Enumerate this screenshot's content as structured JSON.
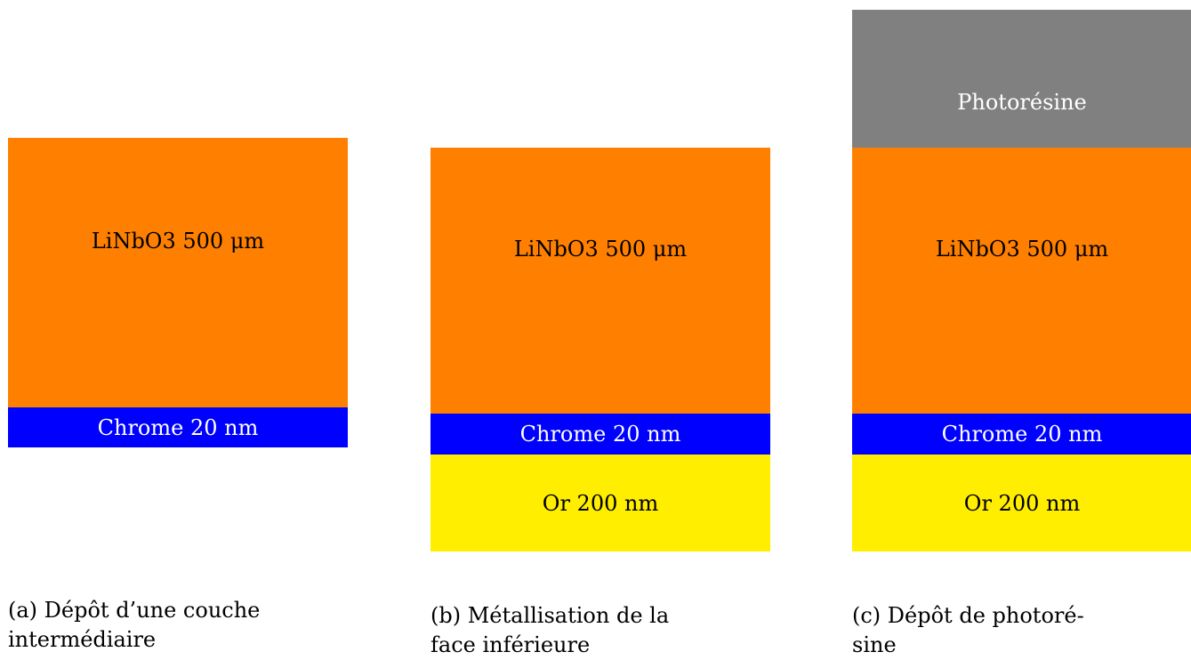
{
  "colors": {
    "lithium_niobate": "#FF8000",
    "chrome": "#0000FF",
    "gold": "#FFEE00",
    "photoresist": "#808080"
  },
  "panels": [
    {
      "layers": {
        "substrate": "LiNbO3 500 μm",
        "chrome": "Chrome 20 nm"
      },
      "caption": {
        "line1": "(a) Dépôt d’une couche",
        "line2": "intermédiaire"
      }
    },
    {
      "layers": {
        "substrate": "LiNbO3 500 μm",
        "chrome": "Chrome 20 nm",
        "gold": "Or 200 nm"
      },
      "caption": {
        "line1": "(b) Métallisation de la",
        "line2": "face inférieure"
      }
    },
    {
      "layers": {
        "photoresist": "Photorésine",
        "substrate": "LiNbO3 500 μm",
        "chrome": "Chrome 20 nm",
        "gold": "Or 200 nm"
      },
      "caption": {
        "line1": "(c) Dépôt de photoré-",
        "line2": "sine"
      }
    }
  ]
}
